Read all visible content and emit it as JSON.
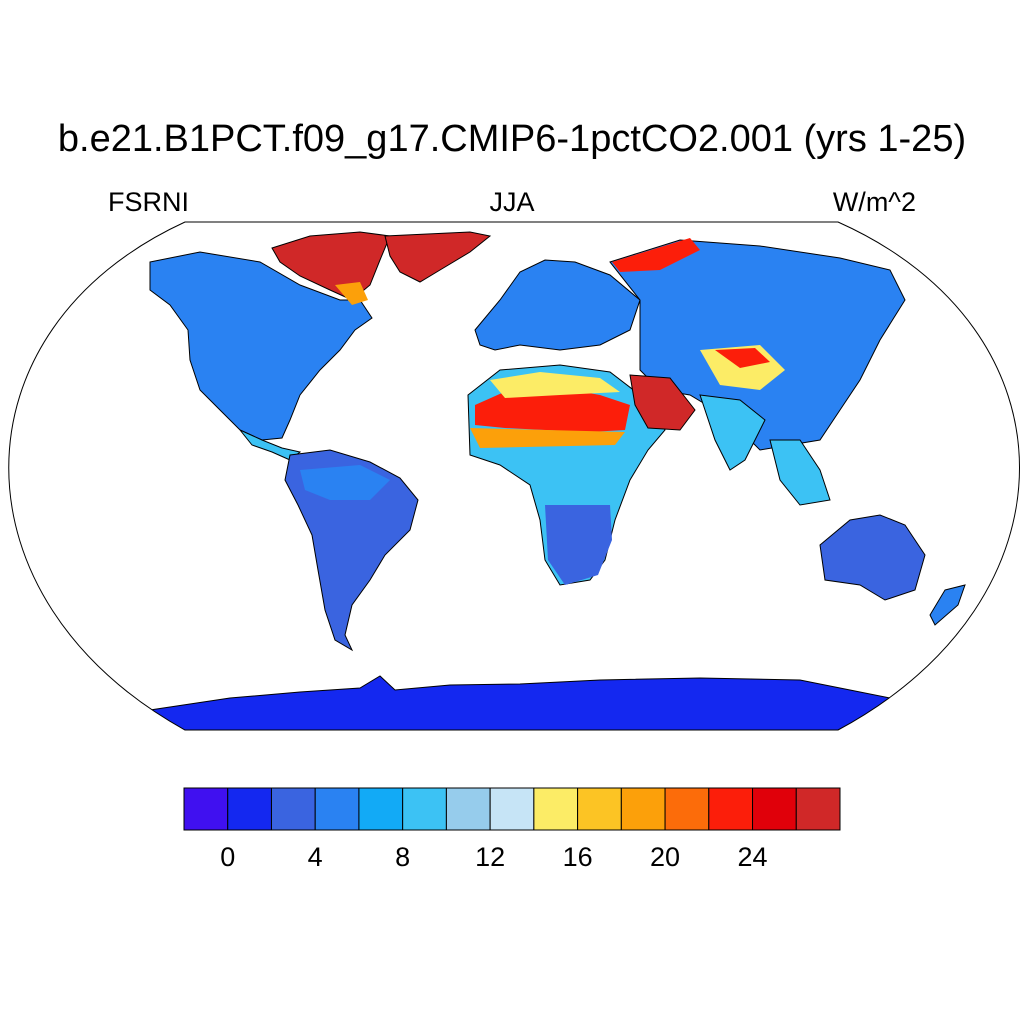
{
  "figure": {
    "title": "b.e21.B1PCT.f09_g17.CMIP6-1pctCO2.001 (yrs 1-25)",
    "left_label": "FSRNI",
    "center_label": "JJA",
    "right_label": "W/m^2"
  },
  "colorbar": {
    "colors": [
      "#4010f0",
      "#1428f0",
      "#3a64e0",
      "#2a82f2",
      "#12aaf6",
      "#3cc2f4",
      "#96ccec",
      "#c6e4f6",
      "#fcec66",
      "#fcc424",
      "#fca00a",
      "#fc6c0a",
      "#fc1e0a",
      "#e0000a",
      "#d02828"
    ],
    "tick_labels": [
      "0",
      "4",
      "8",
      "12",
      "16",
      "20",
      "24"
    ],
    "tick_values": [
      0,
      4,
      8,
      12,
      16,
      20,
      24
    ],
    "levels": [
      0,
      2,
      4,
      6,
      8,
      10,
      12,
      14,
      16,
      18,
      20,
      22,
      24,
      26
    ],
    "units": "W/m^2"
  },
  "map": {
    "projection": "Robinson",
    "variable": "FSRNI",
    "season": "JJA",
    "land_only": true,
    "ocean_color": "#ffffff"
  }
}
